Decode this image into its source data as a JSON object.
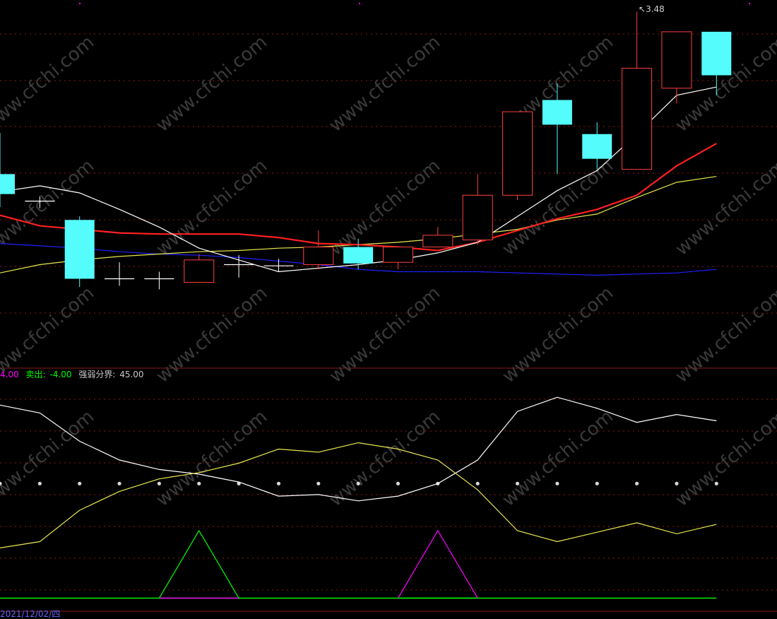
{
  "colors": {
    "background": "#000000",
    "grid": "#8a1a1a",
    "up_candle": "#ff4040",
    "down_candle": "#54fcfc",
    "ma5": "#ffffff",
    "ma10": "#ff2020",
    "ma20": "#e8e850",
    "ma60": "#2020ff",
    "buy_line": "#ff00ff",
    "sell_line": "#00ff00",
    "dots": "#d8d8d8",
    "osc_white": "#ffffff",
    "osc_yellow": "#e8e850"
  },
  "legend": {
    "buy_value": "4.00",
    "sell_label": "卖出:",
    "sell_value": "-4.00",
    "divider_label": "强弱分界:",
    "divider_value": "45.00"
  },
  "date_label": "2021/12/02/四",
  "peak_label": "3.48",
  "watermark": "www.cfchi.com",
  "chart_data": [
    {
      "type": "candlestick",
      "title": "",
      "candles": [
        {
          "o": 2.1,
          "c": 1.93,
          "h": 2.45,
          "l": 1.82
        },
        {
          "o": 1.87,
          "c": 1.87,
          "h": 1.91,
          "l": 1.81
        },
        {
          "o": 1.71,
          "c": 1.21,
          "h": 1.74,
          "l": 1.14
        },
        {
          "o": 1.21,
          "c": 1.21,
          "h": 1.35,
          "l": 1.15
        },
        {
          "o": 1.21,
          "c": 1.21,
          "h": 1.27,
          "l": 1.12
        },
        {
          "o": 1.18,
          "c": 1.37,
          "h": 1.42,
          "l": 1.18
        },
        {
          "o": 1.33,
          "c": 1.33,
          "h": 1.41,
          "l": 1.22
        },
        {
          "o": 1.32,
          "c": 1.32,
          "h": 1.38,
          "l": 1.27
        },
        {
          "o": 1.33,
          "c": 1.48,
          "h": 1.62,
          "l": 1.29
        },
        {
          "o": 1.48,
          "c": 1.34,
          "h": 1.55,
          "l": 1.29
        },
        {
          "o": 1.35,
          "c": 1.48,
          "h": 1.48,
          "l": 1.29
        },
        {
          "o": 1.48,
          "c": 1.58,
          "h": 1.65,
          "l": 1.48
        },
        {
          "o": 1.54,
          "c": 1.92,
          "h": 2.1,
          "l": 1.5
        },
        {
          "o": 1.92,
          "c": 2.63,
          "h": 2.63,
          "l": 1.88
        },
        {
          "o": 2.73,
          "c": 2.52,
          "h": 2.87,
          "l": 2.1
        },
        {
          "o": 2.44,
          "c": 2.23,
          "h": 2.54,
          "l": 2.14
        },
        {
          "o": 2.14,
          "c": 3.0,
          "h": 3.48,
          "l": 2.14
        },
        {
          "o": 2.83,
          "c": 3.31,
          "h": 3.31,
          "l": 2.7
        },
        {
          "o": 3.31,
          "c": 2.94,
          "h": 3.31,
          "l": 2.77
        }
      ],
      "ma5": [
        1.95,
        2.0,
        1.94,
        1.8,
        1.65,
        1.47,
        1.37,
        1.27,
        1.3,
        1.33,
        1.37,
        1.43,
        1.52,
        1.74,
        1.96,
        2.13,
        2.44,
        2.77,
        2.84
      ],
      "ma10": [
        1.75,
        1.66,
        1.63,
        1.6,
        1.59,
        1.59,
        1.59,
        1.56,
        1.51,
        1.5,
        1.48,
        1.45,
        1.52,
        1.62,
        1.72,
        1.8,
        1.92,
        2.17,
        2.36
      ],
      "ma20": [
        1.26,
        1.33,
        1.37,
        1.4,
        1.42,
        1.44,
        1.45,
        1.47,
        1.48,
        1.5,
        1.52,
        1.55,
        1.59,
        1.63,
        1.71,
        1.76,
        1.9,
        2.03,
        2.08
      ],
      "ma60": [
        1.51,
        1.49,
        1.47,
        1.44,
        1.42,
        1.41,
        1.39,
        1.36,
        1.33,
        1.29,
        1.27,
        1.27,
        1.27,
        1.26,
        1.25,
        1.24,
        1.25,
        1.26,
        1.29
      ],
      "ylim": [
        0.45,
        3.58
      ]
    },
    {
      "type": "line",
      "title": "",
      "series": [
        {
          "values": [
            95,
            90,
            72,
            60,
            54,
            51,
            46,
            37,
            38,
            34,
            37,
            45,
            60,
            91,
            100,
            93,
            84,
            89,
            85
          ]
        },
        {
          "values": [
            4,
            8,
            28,
            40,
            48,
            52,
            58,
            67,
            65,
            71,
            67,
            60,
            41,
            15,
            8,
            14,
            20,
            13,
            19
          ]
        }
      ],
      "buy": [
        0,
        0,
        0,
        0,
        0,
        0,
        0,
        0,
        0,
        0,
        0,
        4,
        0,
        0,
        0,
        0,
        0,
        0,
        0
      ],
      "sell": [
        0,
        0,
        0,
        0,
        0,
        -4,
        0,
        0,
        0,
        0,
        0,
        0,
        0,
        0,
        0,
        0,
        0,
        0,
        0
      ],
      "divider": 45,
      "ylim": [
        -35,
        110
      ]
    }
  ]
}
